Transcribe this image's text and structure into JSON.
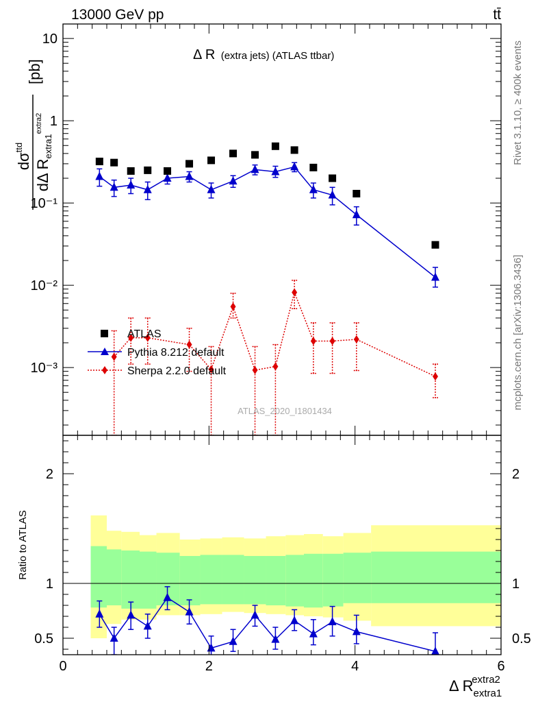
{
  "header": {
    "energy_label": "13000 GeV pp",
    "process_label": "tt̄"
  },
  "side_labels": {
    "rivet": "Rivet 3.1.10, ≥ 400k events",
    "mcplots": "mcplots.cern.ch [arXiv:1306.3436]"
  },
  "watermark": "ATLAS_2020_I1801434",
  "colors": {
    "data": "#000000",
    "pythia": "#0000cc",
    "sherpa": "#dd0000",
    "band_inner": "#99ff99",
    "band_outer": "#ffff99"
  },
  "chart_data": [
    {
      "type": "scatter",
      "title_main": "Δ R",
      "title_rest": "(extra jets) (ATLAS ttbar)",
      "ylabel": "dσ^ttd / dΔ R_extra1^extra2 [pb]",
      "yscale": "log",
      "ylim": [
        0.00015,
        15
      ],
      "xlim": [
        0,
        6
      ],
      "ytick_labels": [
        "10",
        "1",
        "10⁻¹",
        "10⁻²",
        "10⁻³"
      ],
      "legend": [
        "ATLAS",
        "Pythia 8.212 default",
        "Sherpa 2.2.0 default"
      ],
      "series": [
        {
          "name": "ATLAS",
          "x": [
            0.5,
            0.7,
            0.93,
            1.16,
            1.43,
            1.73,
            2.03,
            2.33,
            2.63,
            2.91,
            3.17,
            3.43,
            3.69,
            4.02,
            5.1
          ],
          "y": [
            0.32,
            0.31,
            0.245,
            0.25,
            0.245,
            0.3,
            0.33,
            0.4,
            0.385,
            0.49,
            0.44,
            0.27,
            0.2,
            0.13,
            0.031
          ]
        },
        {
          "name": "Pythia 8.212 default",
          "x": [
            0.5,
            0.7,
            0.93,
            1.16,
            1.43,
            1.73,
            2.03,
            2.33,
            2.63,
            2.91,
            3.17,
            3.43,
            3.69,
            4.02,
            5.1
          ],
          "y": [
            0.21,
            0.155,
            0.165,
            0.145,
            0.2,
            0.21,
            0.145,
            0.185,
            0.255,
            0.24,
            0.275,
            0.145,
            0.125,
            0.072,
            0.0125
          ],
          "yerr_low": [
            0.16,
            0.12,
            0.13,
            0.11,
            0.17,
            0.18,
            0.115,
            0.155,
            0.22,
            0.205,
            0.24,
            0.115,
            0.095,
            0.054,
            0.0095
          ],
          "yerr_high": [
            0.26,
            0.19,
            0.2,
            0.18,
            0.23,
            0.24,
            0.175,
            0.215,
            0.29,
            0.28,
            0.31,
            0.175,
            0.155,
            0.09,
            0.0165
          ]
        },
        {
          "name": "Sherpa 2.2.0 default",
          "x": [
            0.5,
            0.7,
            0.93,
            1.16,
            1.43,
            1.73,
            2.03,
            2.33,
            2.63,
            2.91,
            3.17,
            3.43,
            3.69,
            4.02,
            5.1
          ],
          "y": [
            null,
            0.00135,
            0.0023,
            0.0023,
            null,
            0.0019,
            0.00095,
            0.0055,
            0.00093,
            0.00103,
            0.0082,
            0.0021,
            0.0021,
            0.0022,
            0.00078
          ],
          "yerr_low": [
            null,
            0.00015,
            0.0011,
            0.0011,
            null,
            0.0009,
            0.00015,
            0.004,
            0.00015,
            0.00015,
            0.0052,
            0.00085,
            0.00085,
            0.00092,
            0.00043
          ],
          "yerr_high": [
            null,
            0.0028,
            0.004,
            0.004,
            null,
            0.003,
            0.0018,
            0.008,
            0.0018,
            0.0019,
            0.0115,
            0.0035,
            0.0035,
            0.0035,
            0.0011
          ]
        }
      ]
    },
    {
      "type": "scatter",
      "ylabel": "Ratio to ATLAS",
      "xlabel": "Δ R_extra1^extra2",
      "ylim": [
        0.35,
        2.35
      ],
      "xlim": [
        0,
        6
      ],
      "xtick_labels": [
        "0",
        "2",
        "4",
        "6"
      ],
      "ytick_labels": [
        "0.5",
        "1",
        "2"
      ],
      "bands": {
        "edges": [
          0.38,
          0.6,
          0.8,
          1.05,
          1.28,
          1.6,
          1.88,
          2.18,
          2.48,
          2.78,
          3.05,
          3.3,
          3.56,
          3.84,
          4.22,
          6.0
        ],
        "inner_low": [
          0.78,
          0.8,
          0.77,
          0.77,
          0.8,
          0.8,
          0.81,
          0.81,
          0.81,
          0.8,
          0.79,
          0.78,
          0.79,
          0.82,
          0.82
        ],
        "inner_high": [
          1.34,
          1.31,
          1.3,
          1.29,
          1.28,
          1.25,
          1.26,
          1.26,
          1.25,
          1.25,
          1.26,
          1.27,
          1.27,
          1.28,
          1.29
        ],
        "outer_low": [
          0.5,
          0.63,
          0.67,
          0.67,
          0.71,
          0.71,
          0.72,
          0.74,
          0.73,
          0.72,
          0.71,
          0.7,
          0.69,
          0.66,
          0.61
        ],
        "outer_high": [
          1.62,
          1.48,
          1.47,
          1.44,
          1.46,
          1.4,
          1.41,
          1.42,
          1.41,
          1.43,
          1.44,
          1.45,
          1.43,
          1.46,
          1.53
        ]
      },
      "series": [
        {
          "name": "Pythia 8.212 default",
          "x": [
            0.5,
            0.7,
            0.93,
            1.16,
            1.43,
            1.73,
            2.03,
            2.33,
            2.63,
            2.91,
            3.17,
            3.43,
            3.69,
            4.02,
            5.1
          ],
          "y": [
            0.72,
            0.5,
            0.71,
            0.61,
            0.87,
            0.74,
            0.41,
            0.47,
            0.71,
            0.49,
            0.66,
            0.54,
            0.65,
            0.56,
            0.38
          ],
          "yerr_low": [
            0.6,
            0.35,
            0.58,
            0.5,
            0.76,
            0.63,
            0.32,
            0.38,
            0.61,
            0.4,
            0.57,
            0.44,
            0.52,
            0.45,
            0.28
          ],
          "yerr_high": [
            0.84,
            0.6,
            0.83,
            0.72,
            0.97,
            0.85,
            0.52,
            0.58,
            0.8,
            0.6,
            0.76,
            0.67,
            0.79,
            0.71,
            0.55
          ]
        }
      ]
    }
  ]
}
